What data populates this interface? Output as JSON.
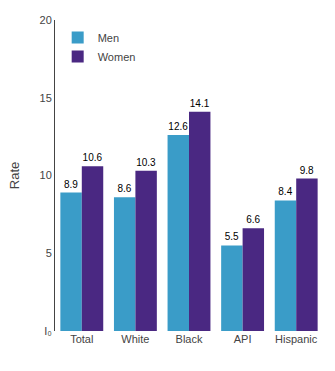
{
  "chart_data": {
    "type": "bar",
    "categories": [
      "Total",
      "White",
      "Black",
      "API",
      "Hispanic"
    ],
    "series": [
      {
        "name": "Men",
        "color": "#3a9cc8",
        "values": [
          8.9,
          8.6,
          12.6,
          5.5,
          8.4
        ]
      },
      {
        "name": "Women",
        "color": "#4a2882",
        "values": [
          10.6,
          10.3,
          14.1,
          6.6,
          9.8
        ]
      }
    ],
    "ylabel": "Rate",
    "ylim": [
      0,
      20
    ],
    "yticks": [
      {
        "value": 0,
        "label": "I₀"
      },
      5,
      10,
      15,
      20
    ],
    "grid": false,
    "legend": "upper left",
    "data_labels": true
  }
}
